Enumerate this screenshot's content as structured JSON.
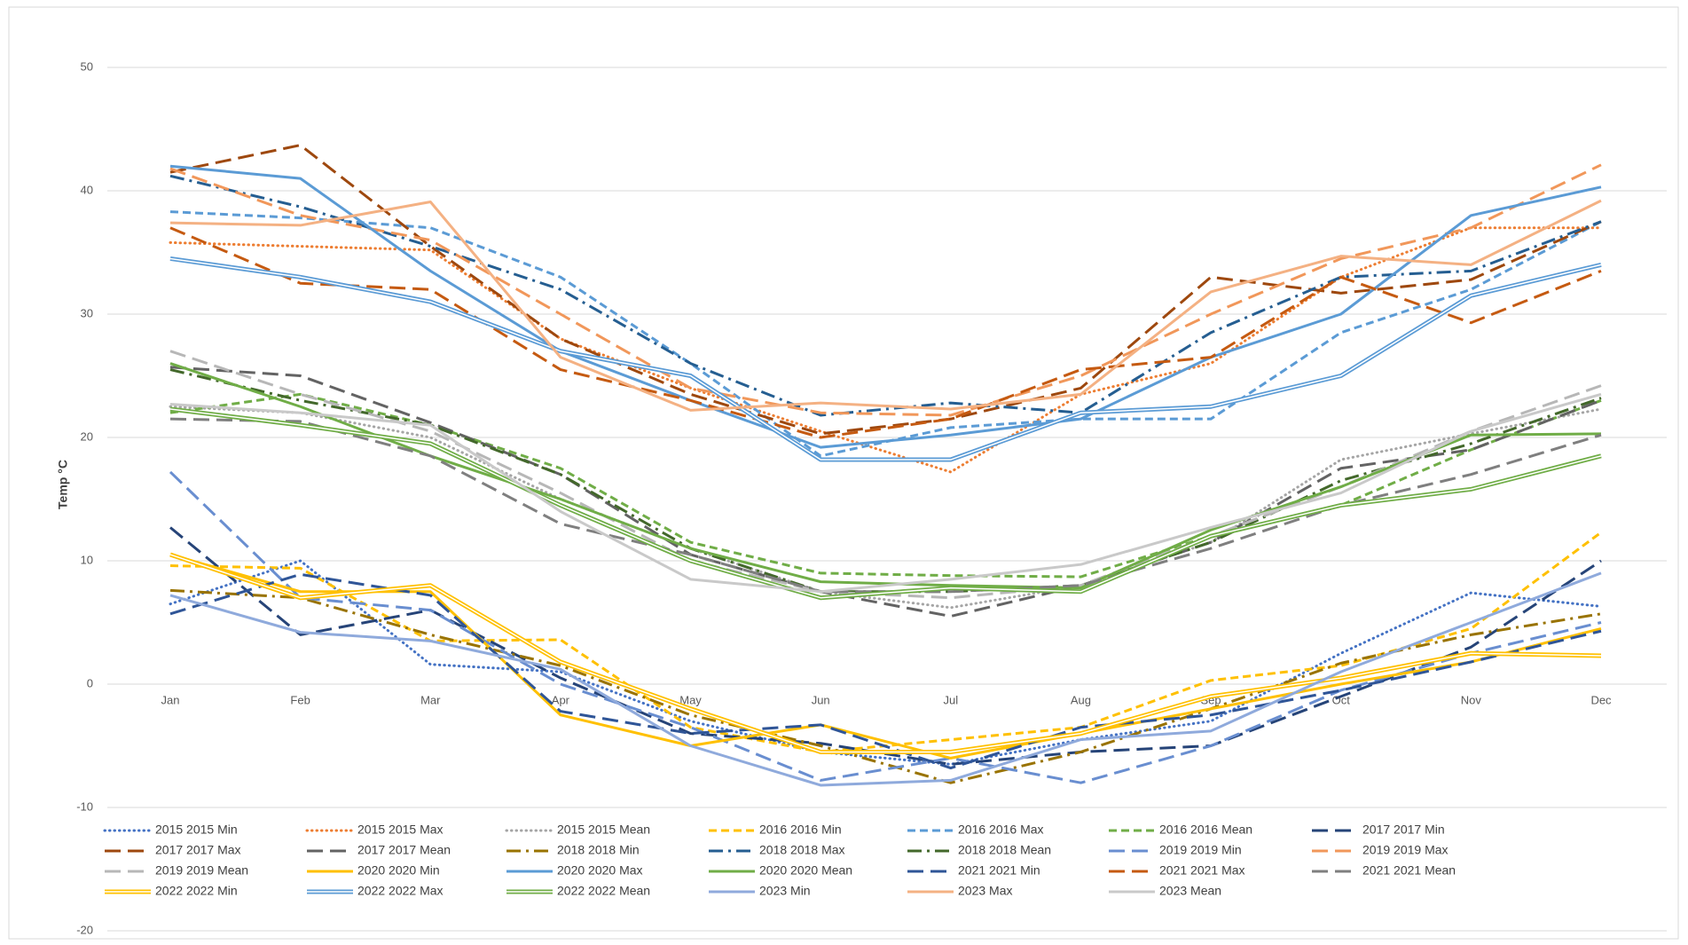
{
  "chart_data": {
    "type": "line",
    "y_label": "Temp °C",
    "categories": [
      "Jan",
      "Feb",
      "Mar",
      "Apr",
      "May",
      "Jun",
      "Jul",
      "Aug",
      "Sep",
      "Oct",
      "Nov",
      "Dec"
    ],
    "ylim": [
      -20,
      50
    ],
    "yticks": [
      -20,
      -10,
      0,
      10,
      20,
      30,
      40,
      50
    ],
    "grid": true,
    "series": [
      {
        "name": "2015 2015 Min",
        "color": "#4472c4",
        "style": "dot",
        "values": [
          6.5,
          10,
          1.6,
          1,
          -3,
          -5.5,
          -6.5,
          -4.5,
          -3,
          2.5,
          7.4,
          6.3
        ]
      },
      {
        "name": "2015 2015 Max",
        "color": "#ed7d31",
        "style": "dot",
        "values": [
          35.8,
          35.5,
          35.2,
          28,
          24,
          20.5,
          17.2,
          23.5,
          26,
          33,
          37,
          37
        ]
      },
      {
        "name": "2015 2015 Mean",
        "color": "#a5a5a5",
        "style": "dot",
        "values": [
          22.5,
          22,
          20,
          15,
          11,
          7.5,
          6.2,
          8,
          11.5,
          18.2,
          20.3,
          22.3
        ]
      },
      {
        "name": "2016 2016 Min",
        "color": "#ffc000",
        "style": "dash",
        "values": [
          9.6,
          9.4,
          3.5,
          3.6,
          -3.5,
          -5.5,
          -4.5,
          -3.5,
          0.3,
          1.5,
          4.5,
          12.3
        ]
      },
      {
        "name": "2016 2016 Max",
        "color": "#5b9bd5",
        "style": "dash",
        "values": [
          38.3,
          37.8,
          37,
          33,
          26,
          18.5,
          20.8,
          21.5,
          21.5,
          28.5,
          32,
          37.5
        ]
      },
      {
        "name": "2016 2016 Mean",
        "color": "#70ad47",
        "style": "dash",
        "values": [
          22,
          23.5,
          21,
          17.5,
          11.5,
          9,
          8.8,
          8.7,
          12,
          14.5,
          19,
          23
        ]
      },
      {
        "name": "2017 2017 Min",
        "color": "#264478",
        "style": "longdash",
        "values": [
          12.7,
          4,
          6,
          0.5,
          -4,
          -4.8,
          -6.5,
          -5.5,
          -5,
          -1,
          3,
          10
        ]
      },
      {
        "name": "2017 2017 Max",
        "color": "#9e480e",
        "style": "longdash",
        "values": [
          41.5,
          43.7,
          35.5,
          28,
          23.5,
          20.3,
          21.5,
          24,
          33,
          31.7,
          32.8,
          37.5
        ]
      },
      {
        "name": "2017 2017 Mean",
        "color": "#636363",
        "style": "longdash",
        "values": [
          25.7,
          25,
          21.2,
          17,
          10.5,
          7.5,
          5.5,
          8,
          11.5,
          17.5,
          19,
          23
        ]
      },
      {
        "name": "2018 2018 Min",
        "color": "#997300",
        "style": "dashdot",
        "values": [
          7.6,
          7,
          4,
          1.5,
          -2.5,
          -5,
          -8,
          -5.5,
          -2,
          1.7,
          4,
          5.7
        ]
      },
      {
        "name": "2018 2018 Max",
        "color": "#255e91",
        "style": "dashdot",
        "values": [
          41.2,
          38.7,
          35.5,
          32,
          26,
          21.8,
          22.8,
          22,
          28.5,
          33,
          33.5,
          37.5
        ]
      },
      {
        "name": "2018 2018 Mean",
        "color": "#43682b",
        "style": "dashdot",
        "values": [
          25.5,
          23,
          21,
          17,
          11,
          7.5,
          7.5,
          8,
          11.5,
          16.5,
          19.5,
          23.2
        ]
      },
      {
        "name": "2019 2019 Min",
        "color": "#698ed0",
        "style": "longdash",
        "values": [
          17.2,
          7,
          6,
          0,
          -3.5,
          -7.8,
          -6,
          -8,
          -5,
          -0.5,
          2.5,
          5
        ]
      },
      {
        "name": "2019 2019 Max",
        "color": "#f1975a",
        "style": "longdash",
        "values": [
          41.8,
          38,
          36,
          30,
          24,
          22,
          21.8,
          25,
          30,
          34.5,
          37,
          42.1
        ]
      },
      {
        "name": "2019 2019 Mean",
        "color": "#b7b7b7",
        "style": "longdash",
        "values": [
          27,
          23.5,
          20.5,
          15.5,
          10,
          7.5,
          7,
          8,
          12,
          16,
          20.5,
          24.2
        ]
      },
      {
        "name": "2020 2020 Min",
        "color": "#ffc000",
        "style": "solid",
        "values": [
          10.5,
          7.5,
          7.5,
          -2.5,
          -5,
          -3.3,
          -6,
          -4,
          -2,
          0,
          1.8,
          4.5
        ]
      },
      {
        "name": "2020 2020 Max",
        "color": "#5b9bd5",
        "style": "solid",
        "values": [
          42,
          41,
          33.5,
          27,
          23,
          19.2,
          20.2,
          21.5,
          26.5,
          30,
          38,
          40.3
        ]
      },
      {
        "name": "2020 2020 Mean",
        "color": "#70ad47",
        "style": "solid",
        "values": [
          26,
          22.5,
          18.5,
          15,
          11,
          8.3,
          8,
          7.8,
          12.5,
          16,
          20.2,
          20.3
        ]
      },
      {
        "name": "2021 2021 Min",
        "color": "#2f5597",
        "style": "longdash",
        "values": [
          5.7,
          8.9,
          7.2,
          -2.2,
          -4,
          -3.3,
          -6.8,
          -3.5,
          -2.5,
          -0.5,
          1.8,
          4.3
        ]
      },
      {
        "name": "2021 2021 Max",
        "color": "#c55a11",
        "style": "longdash",
        "values": [
          37,
          32.5,
          32,
          25.5,
          23,
          20,
          21.5,
          25.5,
          26.5,
          33,
          29.3,
          33.5
        ]
      },
      {
        "name": "2021 2021 Mean",
        "color": "#7f7f7f",
        "style": "longdash",
        "values": [
          21.5,
          21.3,
          18.5,
          13,
          10.5,
          7.5,
          7.5,
          8,
          11,
          14.5,
          17,
          20.2
        ]
      },
      {
        "name": "2022 2022 Min",
        "color": "#ffc000",
        "style": "double",
        "values": [
          10.5,
          7,
          8,
          1.8,
          -2,
          -5.5,
          -5.5,
          -4,
          -1,
          0.5,
          2.5,
          2.3
        ]
      },
      {
        "name": "2022 2022 Max",
        "color": "#5b9bd5",
        "style": "double",
        "values": [
          34.5,
          33,
          31,
          27,
          25,
          18.2,
          18.2,
          22,
          22.5,
          25,
          31.5,
          34
        ]
      },
      {
        "name": "2022 2022 Mean",
        "color": "#70ad47",
        "style": "double",
        "values": [
          22.3,
          21,
          19.5,
          14.5,
          10,
          7,
          7.8,
          7.5,
          12,
          14.5,
          15.8,
          18.5
        ]
      },
      {
        "name": "2023 Min",
        "color": "#8faadc",
        "style": "solid",
        "values": [
          7.2,
          4.2,
          3.5,
          1.2,
          -5,
          -8.2,
          -7.8,
          -4.5,
          -3.8,
          1,
          5,
          9
        ]
      },
      {
        "name": "2023 Max",
        "color": "#f4b183",
        "style": "solid",
        "values": [
          37.4,
          37.2,
          39.1,
          26.5,
          22.2,
          22.8,
          22.3,
          23.5,
          31.8,
          34.7,
          34,
          39.2
        ]
      },
      {
        "name": "2023 Mean",
        "color": "#c9c9c9",
        "style": "solid",
        "values": [
          22.7,
          22,
          21,
          14,
          8.5,
          7.5,
          8.5,
          9.7,
          12.7,
          15.5,
          20.5,
          23.5
        ]
      }
    ]
  }
}
